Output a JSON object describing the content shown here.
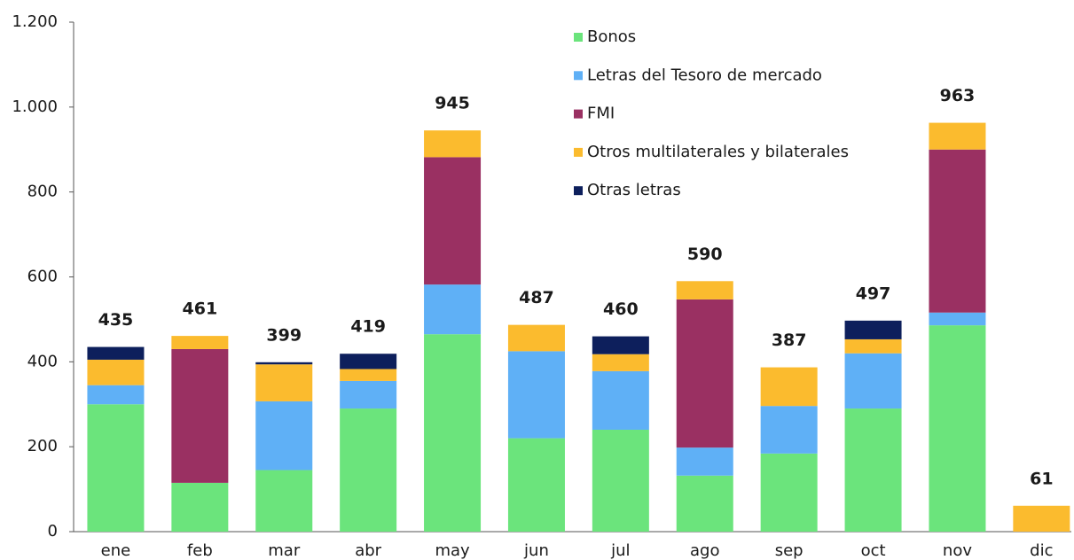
{
  "chart_data": {
    "type": "stacked_bar",
    "categories": [
      "ene",
      "feb",
      "mar",
      "abr",
      "may",
      "jun",
      "jul",
      "ago",
      "sep",
      "oct",
      "nov",
      "dic"
    ],
    "series": [
      {
        "name": "Bonos",
        "color": "#6be47c",
        "values": [
          300,
          115,
          145,
          290,
          465,
          220,
          240,
          132,
          184,
          290,
          486,
          0
        ]
      },
      {
        "name": "Letras del Tesoro de mercado",
        "color": "#5fb0f6",
        "values": [
          45,
          0,
          162,
          65,
          117,
          205,
          138,
          66,
          112,
          130,
          30,
          0
        ]
      },
      {
        "name": "FMI",
        "color": "#9a3062",
        "values": [
          0,
          315,
          0,
          0,
          300,
          0,
          0,
          349,
          0,
          0,
          384,
          0
        ]
      },
      {
        "name": "Otros multilaterales y bilaterales",
        "color": "#fbbb2e",
        "values": [
          60,
          31,
          87,
          28,
          63,
          62,
          40,
          43,
          91,
          33,
          63,
          61
        ]
      },
      {
        "name": "Otras letras",
        "color": "#0d1f5c",
        "values": [
          30,
          0,
          5,
          36,
          0,
          0,
          42,
          0,
          0,
          44,
          0,
          0
        ]
      }
    ],
    "totals": [
      435,
      461,
      399,
      419,
      945,
      487,
      460,
      590,
      387,
      497,
      963,
      61
    ],
    "ylim": [
      0,
      1200
    ],
    "yticks": [
      0,
      200,
      400,
      600,
      800,
      {
        "value": 1000,
        "label": "1.000"
      },
      {
        "value": 1200,
        "label": "1.200"
      }
    ],
    "grid": false
  }
}
